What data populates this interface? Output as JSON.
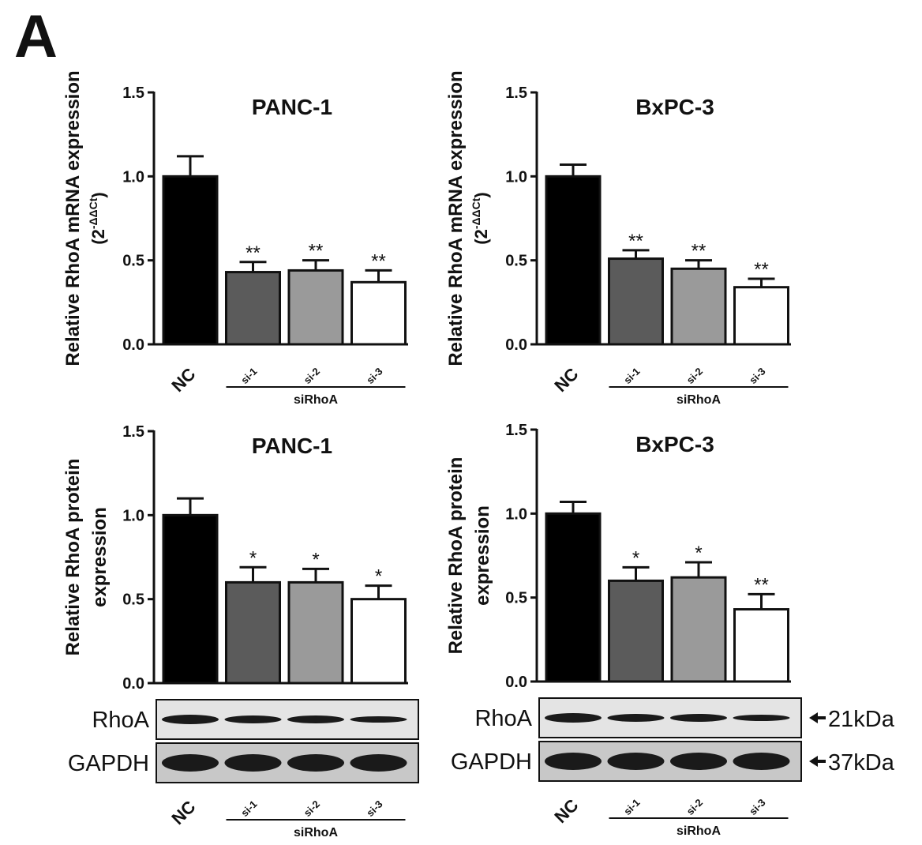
{
  "panel_label": "A",
  "chart_data": [
    {
      "type": "bar",
      "title": "PANC-1",
      "y_label_lines": [
        "Relative RhoA mRNA expression"
      ],
      "y_label_unit": {
        "open": "(2",
        "exponent": "-ΔΔCt",
        "close": ")"
      },
      "categories": [
        "NC",
        "si-1",
        "si-2",
        "si-3"
      ],
      "group_label": "siRhoA",
      "values": [
        1.0,
        0.43,
        0.44,
        0.37
      ],
      "errors": [
        0.12,
        0.06,
        0.06,
        0.07
      ],
      "annotations": [
        null,
        "**",
        "**",
        "**"
      ],
      "colors": [
        "#000000",
        "#5b5b5b",
        "#9a9a9a",
        "#ffffff"
      ],
      "ylim": [
        0,
        1.5
      ],
      "yticks": [
        {
          "value": 0,
          "label": "0.0"
        },
        0.5,
        {
          "value": 1,
          "label": "1.0"
        },
        1.5
      ]
    },
    {
      "type": "bar",
      "title": "BxPC-3",
      "y_label_lines": [
        "Relative RhoA mRNA expression"
      ],
      "y_label_unit": {
        "open": "(2",
        "exponent": "-ΔΔCt",
        "close": ")"
      },
      "categories": [
        "NC",
        "si-1",
        "si-2",
        "si-3"
      ],
      "group_label": "siRhoA",
      "values": [
        1.0,
        0.51,
        0.45,
        0.34
      ],
      "errors": [
        0.07,
        0.05,
        0.05,
        0.05
      ],
      "annotations": [
        null,
        "**",
        "**",
        "**"
      ],
      "colors": [
        "#000000",
        "#5b5b5b",
        "#9a9a9a",
        "#ffffff"
      ],
      "ylim": [
        0,
        1.5
      ],
      "yticks": [
        {
          "value": 0,
          "label": "0.0"
        },
        0.5,
        {
          "value": 1,
          "label": "1.0"
        },
        1.5
      ]
    },
    {
      "type": "bar",
      "title": "PANC-1",
      "y_label_lines": [
        "Relative RhoA protein",
        "expression"
      ],
      "categories": [
        "NC",
        "si-1",
        "si-2",
        "si-3"
      ],
      "group_label": "siRhoA",
      "values": [
        1.0,
        0.6,
        0.6,
        0.5
      ],
      "errors": [
        0.1,
        0.09,
        0.08,
        0.08
      ],
      "annotations": [
        null,
        "*",
        "*",
        "*"
      ],
      "colors": [
        "#000000",
        "#5b5b5b",
        "#9a9a9a",
        "#ffffff"
      ],
      "ylim": [
        0,
        1.5
      ],
      "yticks": [
        {
          "value": 0,
          "label": "0.0"
        },
        0.5,
        {
          "value": 1,
          "label": "1.0"
        },
        1.5
      ],
      "blot_labels": [
        "RhoA",
        "GAPDH"
      ]
    },
    {
      "type": "bar",
      "title": "BxPC-3",
      "y_label_lines": [
        "Relative RhoA protein",
        "expression"
      ],
      "categories": [
        "NC",
        "si-1",
        "si-2",
        "si-3"
      ],
      "group_label": "siRhoA",
      "values": [
        1.0,
        0.6,
        0.62,
        0.43
      ],
      "errors": [
        0.07,
        0.08,
        0.09,
        0.09
      ],
      "annotations": [
        null,
        "*",
        "*",
        "**"
      ],
      "colors": [
        "#000000",
        "#5b5b5b",
        "#9a9a9a",
        "#ffffff"
      ],
      "ylim": [
        0,
        1.5
      ],
      "yticks": [
        {
          "value": 0,
          "label": "0.0"
        },
        0.5,
        {
          "value": 1,
          "label": "1.0"
        },
        1.5
      ],
      "blot_labels": [
        "RhoA",
        "GAPDH"
      ],
      "band_sizes": [
        "21kDa",
        "37kDa"
      ]
    }
  ]
}
